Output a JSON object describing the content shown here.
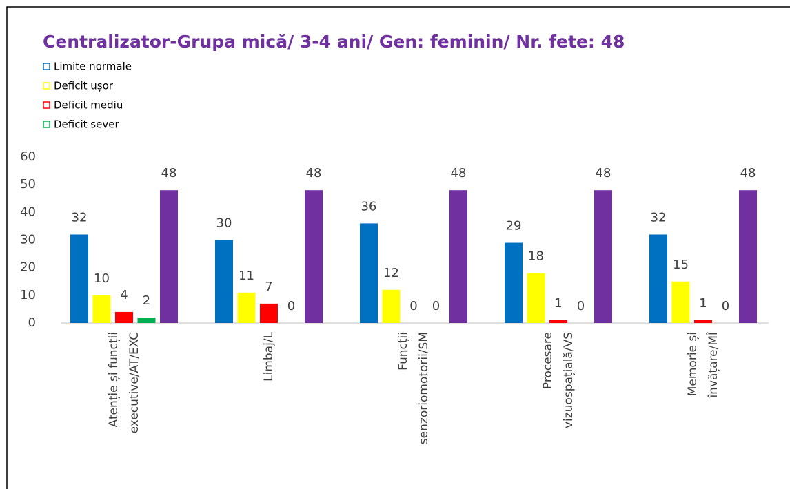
{
  "chart_data": {
    "type": "bar",
    "title": "Centralizator-Grupa mică/ 3-4 ani/ Gen: feminin/ Nr. fete: 48",
    "categories": [
      "Atenție și funcții\nexecutive/AT/EXC",
      "Limbaj/L",
      "Funcții\nsenzoriomotorii/SM",
      "Procesare\nvizuospațială/VS",
      "Memorie și\nînvățare/MÎ"
    ],
    "series": [
      {
        "name": "Limite normale",
        "color": "#0070c0",
        "values": [
          32,
          30,
          36,
          29,
          32
        ]
      },
      {
        "name": "Deficit ușor",
        "color": "#ffff00",
        "values": [
          10,
          11,
          12,
          18,
          15
        ]
      },
      {
        "name": "Deficit mediu",
        "color": "#ff0000",
        "values": [
          4,
          7,
          0,
          1,
          1
        ]
      },
      {
        "name": "Deficit sever",
        "color": "#00b050",
        "values": [
          2,
          0,
          0,
          0,
          0
        ]
      },
      {
        "color": "#7030a0",
        "values": [
          48,
          48,
          48,
          48,
          48
        ]
      }
    ],
    "ylim": [
      0,
      60
    ],
    "yticks": [
      0,
      10,
      20,
      30,
      40,
      50,
      60
    ],
    "grid": false,
    "legend": "top-left",
    "data_labels": true
  }
}
